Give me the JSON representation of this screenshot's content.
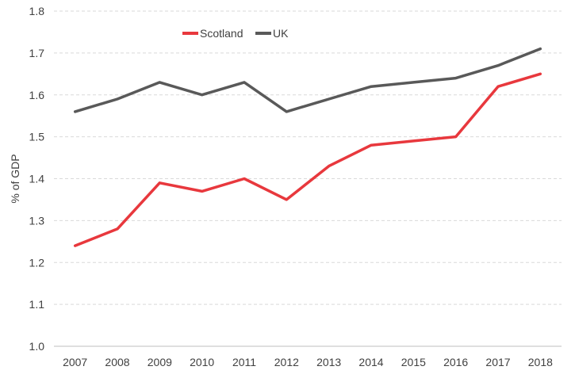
{
  "chart_data": {
    "type": "line",
    "title": "",
    "xlabel": "",
    "ylabel": "% of GDP",
    "ylim": [
      1.0,
      1.8
    ],
    "yticks": [
      "1.0",
      "1.1",
      "1.2",
      "1.3",
      "1.4",
      "1.5",
      "1.6",
      "1.7",
      "1.8"
    ],
    "categories": [
      "2007",
      "2008",
      "2009",
      "2010",
      "2011",
      "2012",
      "2013",
      "2014",
      "2015",
      "2016",
      "2017",
      "2018"
    ],
    "grid": true,
    "legend_position": "top-center",
    "series": [
      {
        "name": "Scotland",
        "color": "#e8383d",
        "values": [
          1.24,
          1.28,
          1.39,
          1.37,
          1.4,
          1.35,
          1.43,
          1.48,
          1.49,
          1.5,
          1.62,
          1.65
        ]
      },
      {
        "name": "UK",
        "color": "#595959",
        "values": [
          1.56,
          1.59,
          1.63,
          1.6,
          1.63,
          1.56,
          1.59,
          1.62,
          1.63,
          1.64,
          1.67,
          1.71
        ]
      }
    ]
  }
}
